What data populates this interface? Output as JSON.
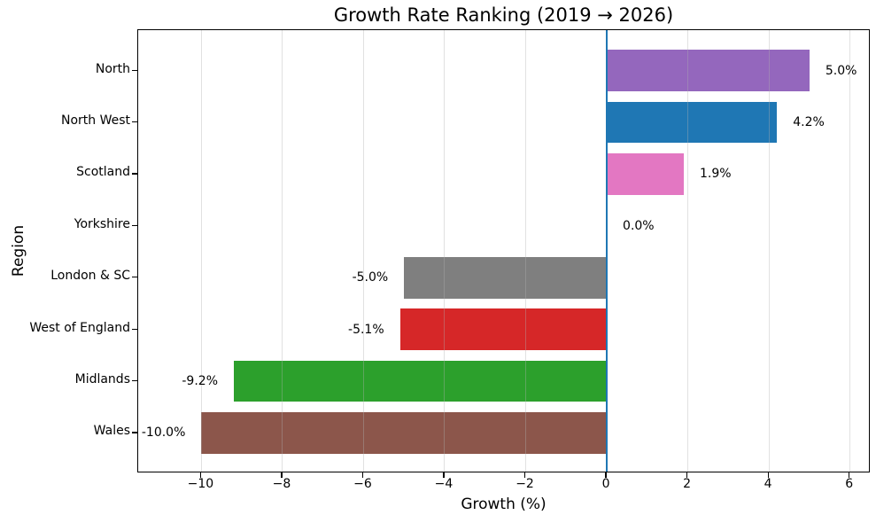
{
  "chart_data": {
    "type": "bar",
    "orientation": "horizontal",
    "title": "Growth Rate Ranking (2019 → 2026)",
    "xlabel": "Growth (%)",
    "ylabel": "Region",
    "categories": [
      "North",
      "North West",
      "Scotland",
      "Yorkshire",
      "London & SC",
      "West of England",
      "Midlands",
      "Wales"
    ],
    "values": [
      5.0,
      4.2,
      1.9,
      0.0,
      -5.0,
      -5.1,
      -9.2,
      -10.0
    ],
    "value_labels": [
      "5.0%",
      "4.2%",
      "1.9%",
      "0.0%",
      "-5.0%",
      "-5.1%",
      "-9.2%",
      "-10.0%"
    ],
    "bar_colors": [
      "#9467bd",
      "#1f77b4",
      "#e377c2",
      null,
      "#7f7f7f",
      "#d62728",
      "#2ca02c",
      "#8c564b"
    ],
    "x_ticks": [
      -10,
      -8,
      -6,
      -4,
      -2,
      0,
      2,
      4,
      6
    ],
    "x_tick_labels": [
      "−10",
      "−8",
      "−6",
      "−4",
      "−2",
      "0",
      "2",
      "4",
      "6"
    ],
    "xlim": [
      -11.56,
      6.51
    ],
    "grid": true,
    "legend": false,
    "zero_line_value": 0,
    "zero_line_color": "#1f77b4",
    "grid_color": "#b0b0b0",
    "background_color": "#ffffff",
    "text_color": "#000000"
  }
}
